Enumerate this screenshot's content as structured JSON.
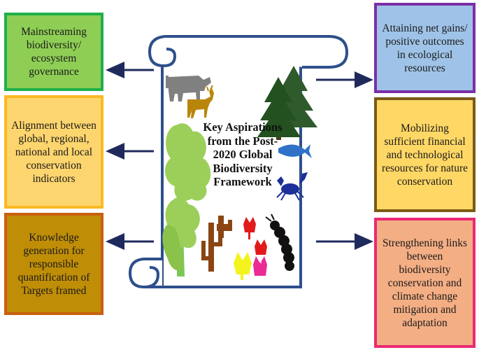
{
  "center": {
    "title": "Key Aspirations from the Post-2020 Global Biodiversity Framework"
  },
  "left_boxes": [
    {
      "text": "Mainstreaming biodiversity/ ecosystem governance"
    },
    {
      "text": "Alignment between global, regional, national and local conservation indicators"
    },
    {
      "text": "Knowledge generation for responsible quantification of Targets framed"
    }
  ],
  "right_boxes": [
    {
      "text": "Attaining net gains/ positive outcomes in ecological resources"
    },
    {
      "text": "Mobilizing sufficient financial and technological resources for nature conservation"
    },
    {
      "text": "Strengthening links between biodiversity conservation and climate change mitigation and adaptation"
    }
  ],
  "colors": {
    "arrow": "#1f2a5c",
    "scroll_border": "#2e4f8c"
  }
}
